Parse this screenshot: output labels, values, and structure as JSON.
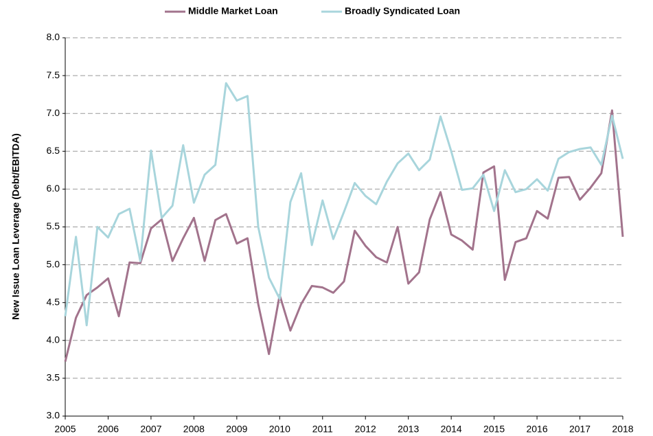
{
  "chart_data": {
    "type": "line",
    "y_label": "New Issue Loan Leverage (Debt/EBITDA)",
    "x": [
      2005,
      2005.25,
      2005.5,
      2005.75,
      2006,
      2006.25,
      2006.5,
      2006.75,
      2007,
      2007.25,
      2007.5,
      2007.75,
      2008,
      2008.25,
      2008.5,
      2008.75,
      2009,
      2009.25,
      2009.5,
      2009.75,
      2010,
      2010.25,
      2010.5,
      2010.75,
      2011,
      2011.25,
      2011.5,
      2011.75,
      2012,
      2012.25,
      2012.5,
      2012.75,
      2013,
      2013.25,
      2013.5,
      2013.75,
      2014,
      2014.25,
      2014.5,
      2014.75,
      2015,
      2015.25,
      2015.5,
      2015.75,
      2016,
      2016.25,
      2016.5,
      2016.75,
      2017,
      2017.25,
      2017.5,
      2017.75,
      2018
    ],
    "series": [
      {
        "name": "Middle Market Loan",
        "color": "#a2738c",
        "values": [
          3.72,
          4.3,
          4.6,
          4.7,
          4.82,
          4.32,
          5.03,
          5.02,
          5.48,
          5.6,
          5.05,
          5.35,
          5.62,
          5.05,
          5.59,
          5.67,
          5.28,
          5.35,
          4.48,
          3.82,
          4.6,
          4.13,
          4.48,
          4.72,
          4.7,
          4.63,
          4.78,
          5.45,
          5.25,
          5.1,
          5.03,
          5.5,
          4.75,
          4.9,
          5.6,
          5.96,
          5.4,
          5.32,
          5.2,
          6.22,
          6.3,
          4.8,
          5.3,
          5.35,
          5.71,
          5.61,
          6.15,
          6.16,
          5.86,
          6.02,
          6.21,
          7.04,
          5.37
        ]
      },
      {
        "name": "Broadly Syndicated Loan",
        "color": "#a8d5dc",
        "values": [
          4.32,
          5.37,
          4.2,
          5.5,
          5.36,
          5.67,
          5.74,
          5.05,
          6.51,
          5.62,
          5.78,
          6.58,
          5.82,
          6.19,
          6.32,
          7.4,
          7.17,
          7.23,
          5.5,
          4.83,
          4.55,
          5.83,
          6.21,
          5.26,
          5.85,
          5.34,
          5.7,
          6.08,
          5.91,
          5.8,
          6.1,
          6.34,
          6.47,
          6.25,
          6.39,
          6.96,
          6.5,
          5.99,
          6.01,
          6.19,
          5.71,
          6.25,
          5.96,
          6.0,
          6.13,
          5.98,
          6.4,
          6.49,
          6.53,
          6.55,
          6.32,
          6.97,
          6.4
        ]
      }
    ],
    "xlim": [
      2005,
      2018
    ],
    "xticks": [
      2005,
      2006,
      2007,
      2008,
      2009,
      2010,
      2011,
      2012,
      2013,
      2014,
      2015,
      2016,
      2017,
      2018
    ],
    "ylim": [
      3,
      8
    ],
    "yticks": [
      {
        "value": 3,
        "label": "3.0"
      },
      {
        "value": 3.5,
        "label": "3.5"
      },
      {
        "value": 4,
        "label": "4.0"
      },
      {
        "value": 4.5,
        "label": "4.5"
      },
      {
        "value": 5,
        "label": "5.0"
      },
      {
        "value": 5.5,
        "label": "5.5"
      },
      {
        "value": 6,
        "label": "6.0"
      },
      {
        "value": 6.5,
        "label": "6.5"
      },
      {
        "value": 7,
        "label": "7.0"
      },
      {
        "value": 7.5,
        "label": "7.5"
      },
      {
        "value": 8,
        "label": "8.0"
      }
    ],
    "grid": true,
    "legend": "top"
  }
}
